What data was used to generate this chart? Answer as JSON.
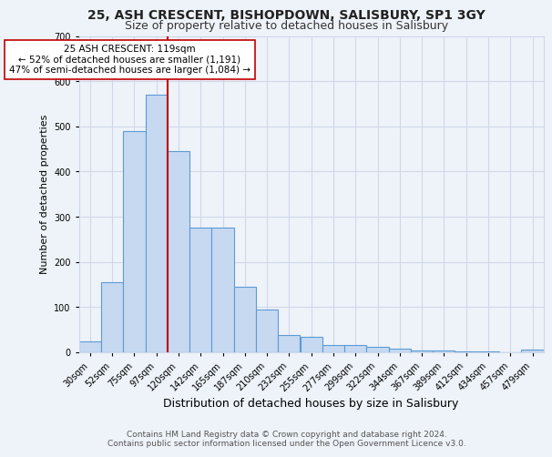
{
  "title_line1": "25, ASH CRESCENT, BISHOPDOWN, SALISBURY, SP1 3GY",
  "title_line2": "Size of property relative to detached houses in Salisbury",
  "xlabel": "Distribution of detached houses by size in Salisbury",
  "ylabel": "Number of detached properties",
  "categories": [
    "30sqm",
    "52sqm",
    "75sqm",
    "97sqm",
    "120sqm",
    "142sqm",
    "165sqm",
    "187sqm",
    "210sqm",
    "232sqm",
    "255sqm",
    "277sqm",
    "299sqm",
    "322sqm",
    "344sqm",
    "367sqm",
    "389sqm",
    "412sqm",
    "434sqm",
    "457sqm",
    "479sqm"
  ],
  "values": [
    25,
    155,
    490,
    570,
    445,
    275,
    275,
    145,
    95,
    38,
    35,
    17,
    17,
    12,
    8,
    5,
    5,
    2,
    2,
    1,
    7
  ],
  "bar_color": "#c6d9f1",
  "bar_edge_color": "#5b9bd5",
  "grid_color": "#d0d8e8",
  "background_color": "#eef2f9",
  "vline_x_index": 4,
  "vline_color": "#c00000",
  "annotation_text": "25 ASH CRESCENT: 119sqm\n← 52% of detached houses are smaller (1,191)\n47% of semi-detached houses are larger (1,084) →",
  "annotation_box_color": "#ffffff",
  "annotation_box_edge_color": "#c00000",
  "ylim": [
    0,
    700
  ],
  "yticks": [
    0,
    100,
    200,
    300,
    400,
    500,
    600,
    700
  ],
  "footer_line1": "Contains HM Land Registry data © Crown copyright and database right 2024.",
  "footer_line2": "Contains public sector information licensed under the Open Government Licence v3.0.",
  "title1_fontsize": 10,
  "title2_fontsize": 9,
  "xlabel_fontsize": 9,
  "ylabel_fontsize": 8,
  "tick_fontsize": 7,
  "annotation_fontsize": 7.5,
  "footer_fontsize": 6.5
}
